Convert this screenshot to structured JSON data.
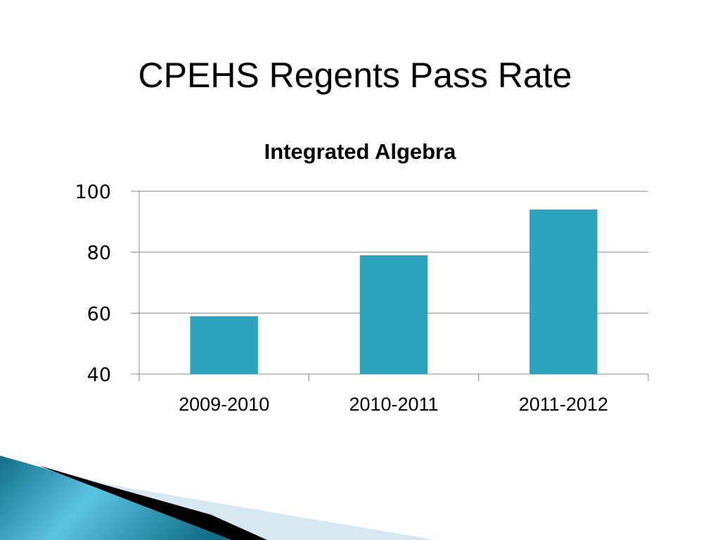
{
  "slide": {
    "title": "CPEHS Regents Pass Rate"
  },
  "chart_data": {
    "type": "bar",
    "title": "Integrated Algebra",
    "categories": [
      "2009-2010",
      "2010-2011",
      "2011-2012"
    ],
    "values": [
      59,
      79,
      94
    ],
    "xlabel": "",
    "ylabel": "",
    "ylim": [
      40,
      100
    ],
    "yticks": [
      "40",
      "60",
      "80",
      "100"
    ],
    "grid": true,
    "legend": "none",
    "bar_color": "#2ea3bf",
    "grid_color": "#888888"
  },
  "theme": {
    "accent_dark": "#0f6f86",
    "accent_light": "#5cc3e0",
    "stripe_black": "#000000",
    "stripe_pale": "#d6e9f2"
  }
}
